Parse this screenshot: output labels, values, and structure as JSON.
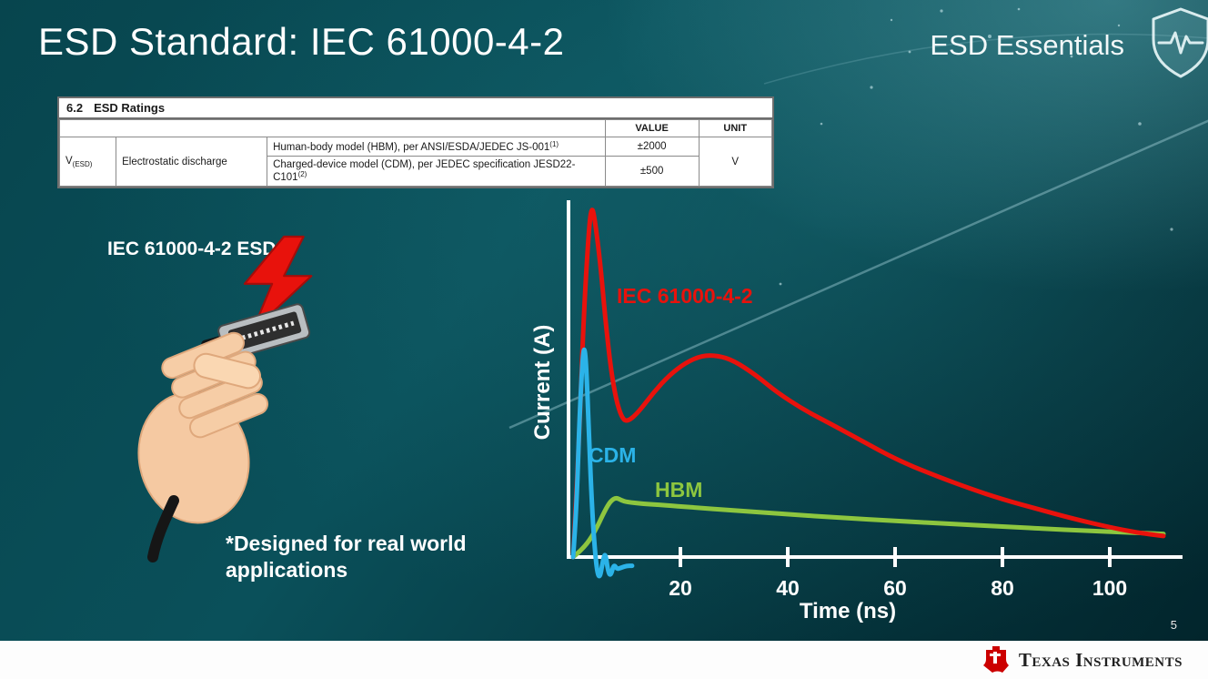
{
  "slide": {
    "title": "ESD Standard: IEC 61000-4-2",
    "brand": "ESD Essentials",
    "page_number": "5",
    "illustration_label": "IEC 61000-4-2 ESD",
    "footnote": "*Designed for real world applications",
    "footer_brand": "Texas Instruments"
  },
  "ratings_table": {
    "section_number": "6.2",
    "section_title": "ESD Ratings",
    "headers": {
      "value": "VALUE",
      "unit": "UNIT"
    },
    "param": {
      "symbol": "V",
      "subscript": "(ESD)",
      "name": "Electrostatic discharge"
    },
    "rows": [
      {
        "condition": "Human-body model (HBM), per ANSI/ESDA/JEDEC JS-001",
        "footnote_ref": "(1)",
        "value": "±2000"
      },
      {
        "condition": "Charged-device model (CDM), per JEDEC specification JESD22-C101",
        "footnote_ref": "(2)",
        "value": "±500"
      }
    ],
    "unit": "V"
  },
  "chart_data": {
    "type": "line",
    "title": "",
    "xlabel": "Time (ns)",
    "ylabel": "Current (A)",
    "x_ticks": [
      20,
      40,
      60,
      80,
      100
    ],
    "xlim": [
      0,
      112
    ],
    "ylim_relative": [
      -0.08,
      1.05
    ],
    "y_axis_numeric_labels": false,
    "grid": false,
    "series": [
      {
        "name": "IEC 61000-4-2",
        "color": "#e8120c",
        "points": [
          [
            0,
            0
          ],
          [
            1,
            0.28
          ],
          [
            2,
            0.7
          ],
          [
            3,
            0.95
          ],
          [
            3.5,
            1.0
          ],
          [
            4,
            0.97
          ],
          [
            5,
            0.85
          ],
          [
            6,
            0.68
          ],
          [
            7,
            0.54
          ],
          [
            8,
            0.45
          ],
          [
            9,
            0.4
          ],
          [
            10,
            0.385
          ],
          [
            12,
            0.41
          ],
          [
            15,
            0.47
          ],
          [
            18,
            0.52
          ],
          [
            21,
            0.555
          ],
          [
            24,
            0.575
          ],
          [
            27,
            0.575
          ],
          [
            30,
            0.56
          ],
          [
            34,
            0.52
          ],
          [
            38,
            0.47
          ],
          [
            43,
            0.42
          ],
          [
            48,
            0.38
          ],
          [
            54,
            0.33
          ],
          [
            60,
            0.28
          ],
          [
            67,
            0.235
          ],
          [
            74,
            0.195
          ],
          [
            80,
            0.165
          ],
          [
            87,
            0.135
          ],
          [
            93,
            0.11
          ],
          [
            100,
            0.085
          ],
          [
            105,
            0.07
          ],
          [
            110,
            0.06
          ]
        ]
      },
      {
        "name": "CDM",
        "color": "#2bb3e8",
        "points": [
          [
            0,
            0
          ],
          [
            0.6,
            0.12
          ],
          [
            1.2,
            0.4
          ],
          [
            1.8,
            0.58
          ],
          [
            2.2,
            0.6
          ],
          [
            2.6,
            0.5
          ],
          [
            3,
            0.33
          ],
          [
            3.5,
            0.15
          ],
          [
            4,
            0.03
          ],
          [
            4.5,
            -0.045
          ],
          [
            5,
            -0.06
          ],
          [
            5.5,
            -0.015
          ],
          [
            6,
            0.015
          ],
          [
            6.5,
            -0.04
          ],
          [
            7,
            -0.055
          ],
          [
            7.6,
            -0.02
          ],
          [
            8.2,
            -0.035
          ],
          [
            9,
            -0.03
          ],
          [
            10,
            -0.025
          ],
          [
            11,
            -0.025
          ]
        ]
      },
      {
        "name": "HBM",
        "color": "#8dc63f",
        "points": [
          [
            0,
            0
          ],
          [
            2,
            0.025
          ],
          [
            4,
            0.07
          ],
          [
            6,
            0.135
          ],
          [
            7,
            0.16
          ],
          [
            8,
            0.17
          ],
          [
            9,
            0.162
          ],
          [
            10,
            0.157
          ],
          [
            13,
            0.152
          ],
          [
            17,
            0.148
          ],
          [
            22,
            0.142
          ],
          [
            30,
            0.133
          ],
          [
            40,
            0.122
          ],
          [
            50,
            0.112
          ],
          [
            60,
            0.103
          ],
          [
            70,
            0.095
          ],
          [
            80,
            0.087
          ],
          [
            90,
            0.079
          ],
          [
            100,
            0.072
          ],
          [
            110,
            0.066
          ]
        ]
      }
    ]
  }
}
